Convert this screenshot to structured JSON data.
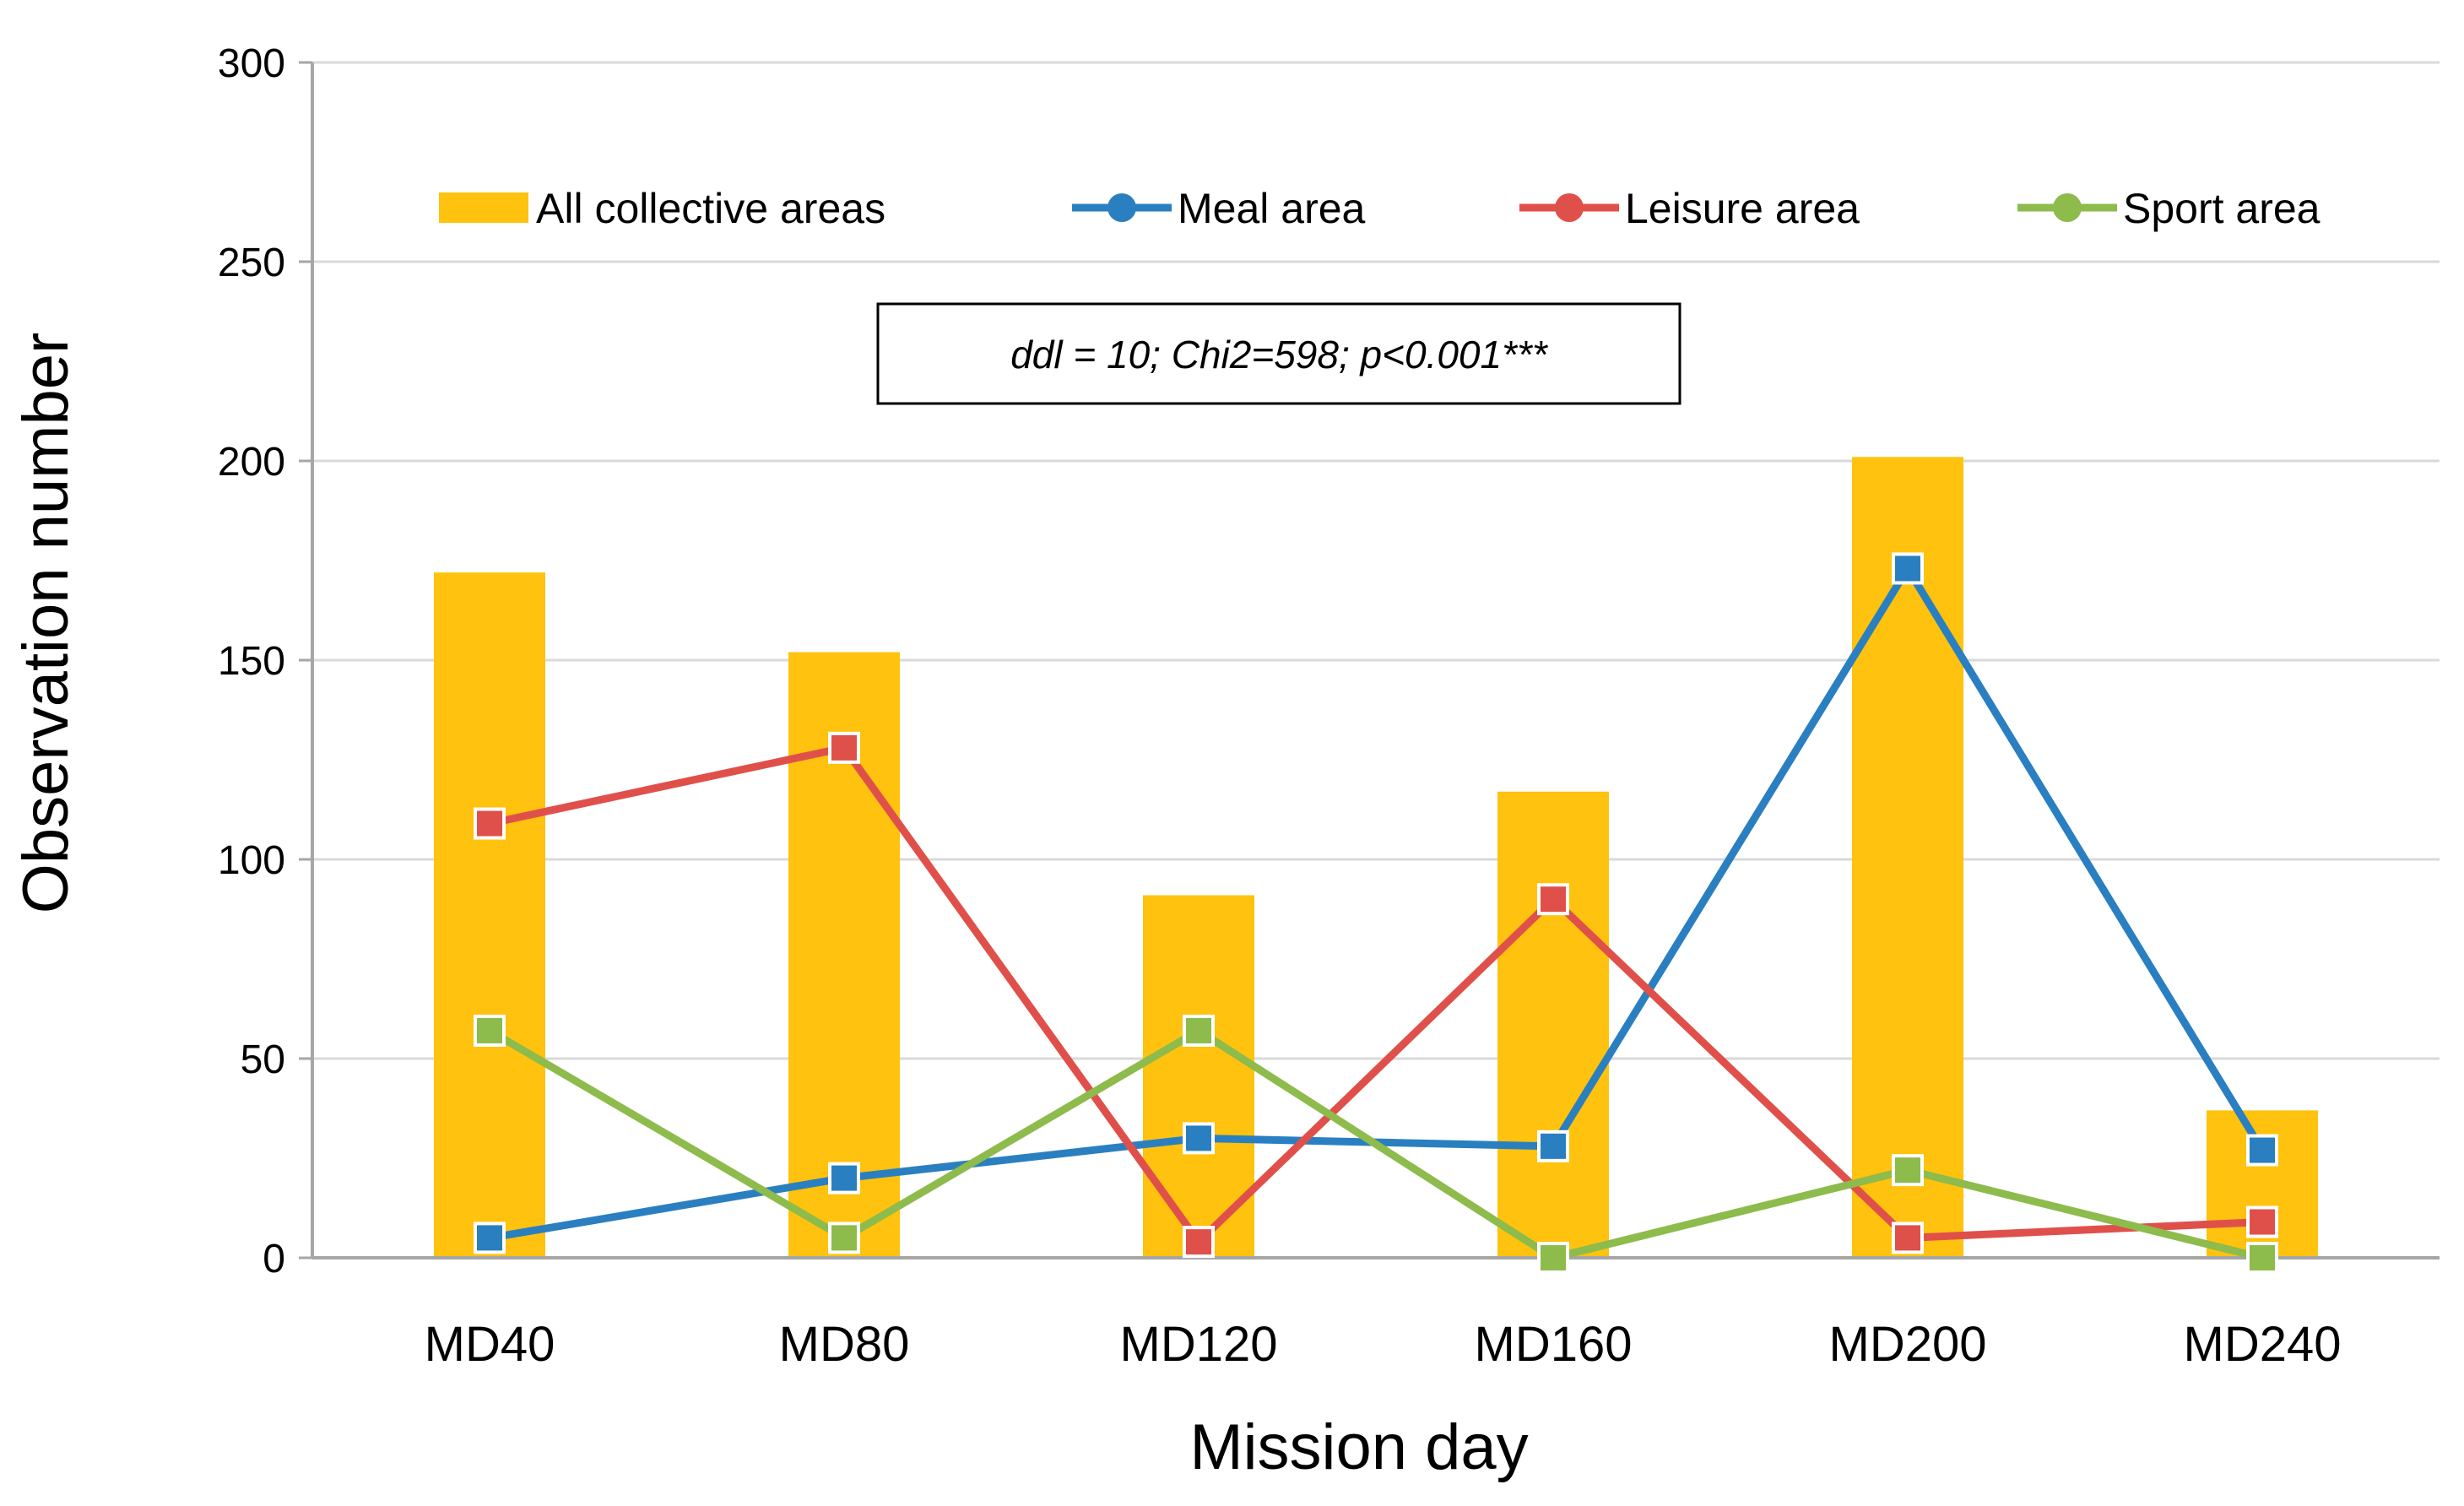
{
  "chart_data": {
    "type": "bar",
    "title": "",
    "xlabel": "Mission day",
    "ylabel": "Observation number",
    "ylim": [
      0,
      300
    ],
    "yticks": [
      0,
      50,
      100,
      150,
      200,
      250,
      300
    ],
    "grid": true,
    "categories": [
      "MD40",
      "MD80",
      "MD120",
      "MD160",
      "MD200",
      "MD240"
    ],
    "bars": {
      "name": "All collective areas",
      "color": "#ffc20e",
      "values": [
        172,
        152,
        91,
        117,
        201,
        37
      ]
    },
    "series": [
      {
        "name": "Meal area",
        "color": "#2a7fc1",
        "values": [
          5,
          20,
          30,
          28,
          173,
          27
        ]
      },
      {
        "name": "Leisure area",
        "color": "#e0504a",
        "values": [
          109,
          128,
          4,
          90,
          5,
          9
        ]
      },
      {
        "name": "Sport area",
        "color": "#8dbb4c",
        "values": [
          57,
          5,
          57,
          0,
          22,
          0
        ]
      }
    ],
    "legend_position": "top",
    "annotation": "ddl = 10; Chi2=598; p<0.001***"
  }
}
